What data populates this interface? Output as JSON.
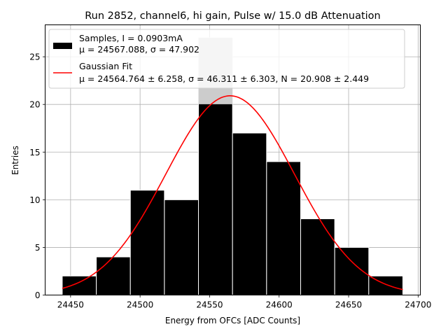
{
  "chart_data": {
    "type": "bar",
    "title": "Run 2852, channel6, hi gain, Pulse w/ 15.0 dB Attenuation",
    "xlabel": "Energy from OFCs [ADC Counts]",
    "ylabel": "Entries",
    "xlim": [
      24431.7,
      24701.6
    ],
    "ylim": [
      0,
      28.35
    ],
    "xticks": [
      24450,
      24500,
      24550,
      24600,
      24650,
      24700
    ],
    "yticks": [
      0,
      5,
      10,
      15,
      20,
      25
    ],
    "grid": true,
    "legend_position": "top-left",
    "histogram": {
      "name": "Samples, I = 0.0903mA",
      "stats": "μ = 24567.088, σ = 47.902",
      "bin_edges": [
        24444.0,
        24468.5,
        24493.0,
        24517.5,
        24542.0,
        24566.5,
        24591.0,
        24615.5,
        24640.0,
        24664.5,
        24689.0
      ],
      "counts": [
        2,
        4,
        11,
        10,
        27,
        17,
        14,
        8,
        5,
        2
      ],
      "color": "#000000"
    },
    "fit": {
      "name": "Gaussian Fit",
      "stats": "μ = 24564.764 ± 6.258, σ = 46.311 ± 6.303, N = 20.908 ± 2.449",
      "mu": 24564.764,
      "sigma": 46.311,
      "amplitude": 20.908,
      "x_range": [
        24444.0,
        24689.0
      ],
      "color": "#ff0000"
    },
    "gray_bar_color": "#cccccc"
  }
}
